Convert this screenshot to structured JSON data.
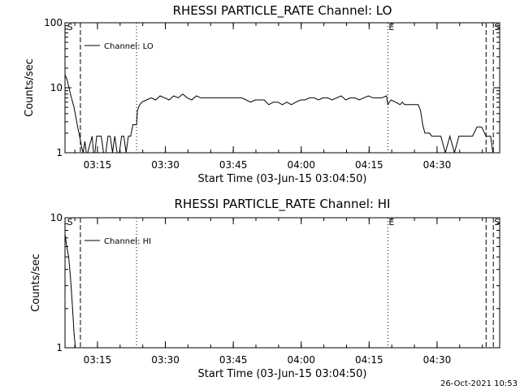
{
  "footer": {
    "timestamp": "26-Oct-2021 10:53"
  },
  "chart_data": [
    {
      "type": "line",
      "title": "RHESSI PARTICLE_RATE Channel: LO",
      "xlabel": "Start Time (03-Jun-15 03:04:50)",
      "ylabel": "Counts/sec",
      "yscale": "log",
      "ylim": [
        1,
        100
      ],
      "yticks": [
        1,
        10,
        100
      ],
      "ytick_labels": [
        "1",
        "10",
        "100"
      ],
      "xlim_minutes": [
        3.0,
        99.0
      ],
      "xticks_minutes": [
        10.17,
        25.17,
        40.17,
        55.17,
        70.17,
        85.17
      ],
      "xtick_labels": [
        "03:15",
        "03:30",
        "03:45",
        "04:00",
        "04:15",
        "04:30"
      ],
      "legend": {
        "label": "Channel: LO",
        "placement": "top-left"
      },
      "markers": [
        {
          "label": "S",
          "x": 3.3,
          "style": "none"
        },
        {
          "label": "",
          "x": 6.4,
          "style": "dashed"
        },
        {
          "label": "",
          "x": 18.8,
          "style": "dotted"
        },
        {
          "label": "E",
          "x": 74.3,
          "style": "dotted"
        },
        {
          "label": "",
          "x": 96.0,
          "style": "dashed"
        },
        {
          "label": "S",
          "x": 97.6,
          "style": "dashed"
        }
      ],
      "series": [
        {
          "x": [
            3.0,
            3.5,
            4.2,
            5.0,
            5.8,
            6.3,
            6.7,
            7.0,
            7.4,
            7.7,
            8.0,
            9.0,
            9.3,
            9.6,
            10.0,
            11.0,
            11.5,
            12.0,
            12.5,
            13.0,
            13.5,
            14.0,
            14.5,
            15.0,
            15.5,
            16.0,
            16.5,
            17.0,
            17.5,
            18.0,
            18.8,
            19.0,
            19.5,
            20.0,
            21.0,
            22.0,
            23.0,
            24.0,
            25.0,
            26.0,
            27.0,
            28.0,
            29.0,
            30.0,
            31.0,
            32.0,
            33.0,
            34.0,
            35.0,
            36.0,
            37.0,
            38.0,
            39.0,
            40.0,
            41.0,
            42.0,
            43.0,
            44.0,
            45.0,
            46.0,
            47.0,
            48.0,
            49.0,
            50.0,
            51.0,
            52.0,
            53.0,
            54.0,
            55.0,
            56.0,
            57.0,
            58.0,
            59.0,
            60.0,
            61.0,
            62.0,
            63.0,
            64.0,
            65.0,
            66.0,
            67.0,
            68.0,
            69.0,
            70.0,
            71.0,
            72.0,
            73.0,
            74.0,
            74.3,
            75.0,
            76.0,
            77.0,
            77.5,
            78.0,
            78.5,
            79.0,
            80.0,
            81.0,
            81.5,
            82.0,
            82.5,
            83.0,
            83.5,
            84.0,
            85.0,
            86.0,
            87.0,
            88.0,
            89.0,
            90.0,
            91.0,
            92.0,
            93.0,
            94.0,
            95.0,
            96.0,
            97.0,
            97.5,
            98.0
          ],
          "y": [
            16,
            13,
            8,
            5,
            2.5,
            1.7,
            1.2,
            1.0,
            1.5,
            1.0,
            1.0,
            1.8,
            1.0,
            1.0,
            1.8,
            1.8,
            1.0,
            1.0,
            1.8,
            1.8,
            1.0,
            1.8,
            1.0,
            1.0,
            1.8,
            1.8,
            1.0,
            1.8,
            1.8,
            2.7,
            2.7,
            4.5,
            5.5,
            6.0,
            6.5,
            7.0,
            6.5,
            7.5,
            7.0,
            6.5,
            7.5,
            7.0,
            8.0,
            7.0,
            6.5,
            7.5,
            7.0,
            7.0,
            7.0,
            7.0,
            7.0,
            7.0,
            7.0,
            7.0,
            7.0,
            7.0,
            6.5,
            6.0,
            6.5,
            6.5,
            6.5,
            5.5,
            6.0,
            6.0,
            5.5,
            6.0,
            5.5,
            6.0,
            6.5,
            6.5,
            7.0,
            7.0,
            6.5,
            7.0,
            7.0,
            6.5,
            7.0,
            7.5,
            6.5,
            7.0,
            7.0,
            6.5,
            7.0,
            7.5,
            7.0,
            7.0,
            7.0,
            7.5,
            5.5,
            6.5,
            6.0,
            5.5,
            6.0,
            5.5,
            5.5,
            5.5,
            5.5,
            5.5,
            4.5,
            2.7,
            2.0,
            2.0,
            2.0,
            1.8,
            1.8,
            1.8,
            1.0,
            1.8,
            1.0,
            1.8,
            1.8,
            1.8,
            1.8,
            2.5,
            2.5,
            1.8,
            1.8,
            1.0,
            1.0
          ]
        }
      ]
    },
    {
      "type": "line",
      "title": "RHESSI PARTICLE_RATE Channel: HI",
      "xlabel": "Start Time (03-Jun-15 03:04:50)",
      "ylabel": "Counts/sec",
      "yscale": "log",
      "ylim": [
        1,
        10
      ],
      "yticks": [
        1,
        10
      ],
      "ytick_labels": [
        "1",
        "10"
      ],
      "xlim_minutes": [
        3.0,
        99.0
      ],
      "xticks_minutes": [
        10.17,
        25.17,
        40.17,
        55.17,
        70.17,
        85.17
      ],
      "xtick_labels": [
        "03:15",
        "03:30",
        "03:45",
        "04:00",
        "04:15",
        "04:30"
      ],
      "legend": {
        "label": "Channel: HI",
        "placement": "top-left"
      },
      "markers": [
        {
          "label": "S",
          "x": 3.3,
          "style": "none"
        },
        {
          "label": "",
          "x": 6.4,
          "style": "dashed"
        },
        {
          "label": "",
          "x": 18.8,
          "style": "dotted"
        },
        {
          "label": "E",
          "x": 74.3,
          "style": "dotted"
        },
        {
          "label": "",
          "x": 96.0,
          "style": "dashed"
        },
        {
          "label": "S",
          "x": 97.6,
          "style": "dashed"
        }
      ],
      "series": [
        {
          "x": [
            3.0,
            3.4,
            3.8,
            4.2,
            4.6,
            5.0,
            5.3
          ],
          "y": [
            7.5,
            6.0,
            5.0,
            3.5,
            2.2,
            1.3,
            1.0
          ]
        }
      ]
    }
  ]
}
